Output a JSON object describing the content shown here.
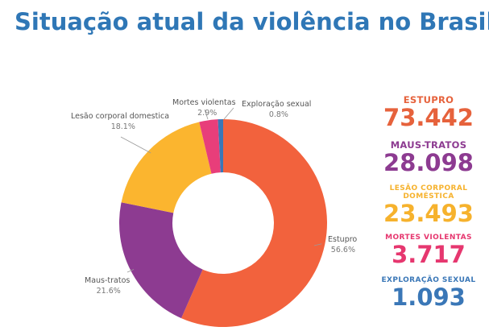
{
  "title": "Situação atual da violência no Brasil",
  "chart_data": {
    "type": "pie",
    "variant": "donut",
    "categories": [
      "Estupro",
      "Maus-tratos",
      "Lesão corporal domestica",
      "Mortes violentas",
      "Exploração sexual"
    ],
    "values": [
      56.6,
      21.6,
      18.1,
      2.9,
      0.8
    ],
    "value_labels": [
      "56.6%",
      "21.6%",
      "18.1%",
      "2.9%",
      "0.8%"
    ],
    "colors": [
      "#f2623d",
      "#8d3b91",
      "#fbb52f",
      "#e83e7a",
      "#3a77b7"
    ]
  },
  "stats": [
    {
      "label": "ESTUPRO",
      "value": "73.442",
      "color": "#e6623c"
    },
    {
      "label": "MAUS-TRATOS",
      "value": "28.098",
      "color": "#8d3b91"
    },
    {
      "label": "LESÃO CORPORAL DOMÉSTICA",
      "value": "23.493",
      "color": "#f6b22d"
    },
    {
      "label": "MORTES VIOLENTAS",
      "value": "3.717",
      "color": "#e6376f"
    },
    {
      "label": "EXPLORAÇÃO SEXUAL",
      "value": "1.093",
      "color": "#3a77b7"
    }
  ]
}
